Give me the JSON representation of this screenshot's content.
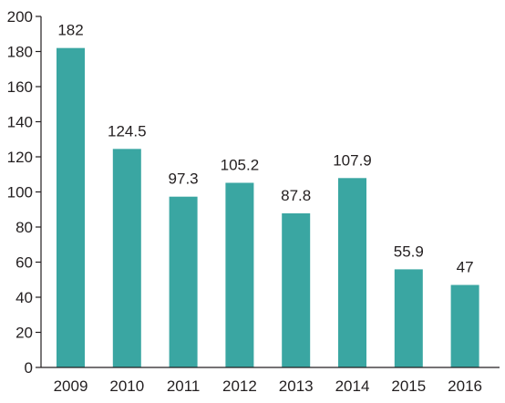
{
  "chart_data": {
    "type": "bar",
    "categories": [
      "2009",
      "2010",
      "2011",
      "2012",
      "2013",
      "2014",
      "2015",
      "2016"
    ],
    "values": [
      182,
      124.5,
      97.3,
      105.2,
      87.8,
      107.9,
      55.9,
      47
    ],
    "data_labels": [
      "182",
      "124.5",
      "97.3",
      "105.2",
      "87.8",
      "107.9",
      "55.9",
      "47"
    ],
    "y_ticks": [
      "0",
      "20",
      "40",
      "60",
      "80",
      "100",
      "120",
      "140",
      "160",
      "180",
      "200"
    ],
    "ylim": [
      0,
      200
    ],
    "grid": false,
    "legend": "none",
    "colors": {
      "bar": "#3aa6a2",
      "axis": "#231f20",
      "text": "#231f20"
    }
  }
}
